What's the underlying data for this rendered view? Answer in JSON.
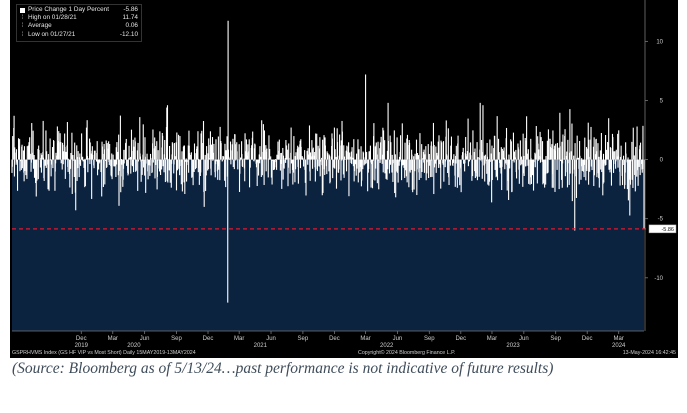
{
  "chart_data": {
    "type": "bar",
    "legend": {
      "series": "Price Change 1 Day Percent",
      "series_value": "-5.86",
      "high_label": "High on 01/28/21",
      "high_value": "11.74",
      "average_label": "Average",
      "average_value": "0.06",
      "low_label": "Low on 01/27/21",
      "low_value": "-12.10"
    },
    "ylim": [
      -14.5,
      13.5
    ],
    "y_ticks": [
      "10",
      "5",
      "0",
      "-5",
      "-10"
    ],
    "y_tick_values": [
      10,
      5,
      0,
      -5,
      -10
    ],
    "last_value_label": "-5.86",
    "last_value": -5.86,
    "x_start": "2019-05-15",
    "x_end": "2024-05-13",
    "x_ticks": [
      {
        "month": "Dec",
        "year": "2019",
        "date": "2019-12-01"
      },
      {
        "month": "Mar",
        "year": "2020",
        "date": "2020-03-01"
      },
      {
        "month": "Jun",
        "year": "",
        "date": "2020-06-01"
      },
      {
        "month": "Sep",
        "year": "",
        "date": "2020-09-01"
      },
      {
        "month": "Dec",
        "year": "",
        "date": "2020-12-01"
      },
      {
        "month": "Mar",
        "year": "2021",
        "date": "2021-03-01"
      },
      {
        "month": "Jun",
        "year": "",
        "date": "2021-06-01"
      },
      {
        "month": "Sep",
        "year": "",
        "date": "2021-09-01"
      },
      {
        "month": "Dec",
        "year": "",
        "date": "2021-12-01"
      },
      {
        "month": "Mar",
        "year": "2022",
        "date": "2022-03-01"
      },
      {
        "month": "Jun",
        "year": "",
        "date": "2022-06-01"
      },
      {
        "month": "Sep",
        "year": "",
        "date": "2022-09-01"
      },
      {
        "month": "Dec",
        "year": "",
        "date": "2022-12-01"
      },
      {
        "month": "Mar",
        "year": "2023",
        "date": "2023-03-01"
      },
      {
        "month": "Jun",
        "year": "",
        "date": "2023-06-01"
      },
      {
        "month": "Sep",
        "year": "",
        "date": "2023-09-01"
      },
      {
        "month": "Dec",
        "year": "",
        "date": "2023-12-01"
      },
      {
        "month": "Mar",
        "year": "2024",
        "date": "2024-03-01"
      }
    ],
    "year_label_positions": [
      {
        "label": "2020",
        "date": "2020-05-01"
      },
      {
        "label": "2021",
        "date": "2021-05-01"
      },
      {
        "label": "2022",
        "date": "2022-05-01"
      },
      {
        "label": "2023",
        "date": "2023-05-01"
      },
      {
        "label": "2024",
        "date": "2024-03-01"
      }
    ],
    "series": [
      {
        "x": [
          "2021-01-27",
          "2021-01-28",
          "2020-11-20",
          "2022-03-01",
          "2022-05-05",
          "2023-01-26",
          "2023-10-26",
          "2024-02-01",
          "2024-05-13"
        ],
        "values": [
          -12.1,
          11.74,
          -4.0,
          7.2,
          4.8,
          4.8,
          -6.0,
          3.5,
          -5.86
        ]
      }
    ],
    "colors": {
      "background": "#000000",
      "fill_below": "#0c2340",
      "bars": "#ffffff",
      "last_value_line": "#e0182d",
      "tick_text": "#cfcfcf"
    }
  },
  "footer": {
    "left": "GSPRHVMS Index (GS HF VIP vs Most Short)  Daily 15MAY2019-13MAY2024",
    "middle": "Copyright© 2024 Bloomberg Finance L.P.",
    "right": "13-May-2024 16:42:45"
  },
  "source_note": "(Source: Bloomberg as of 5/13/24…past performance is not indicative of future results)"
}
